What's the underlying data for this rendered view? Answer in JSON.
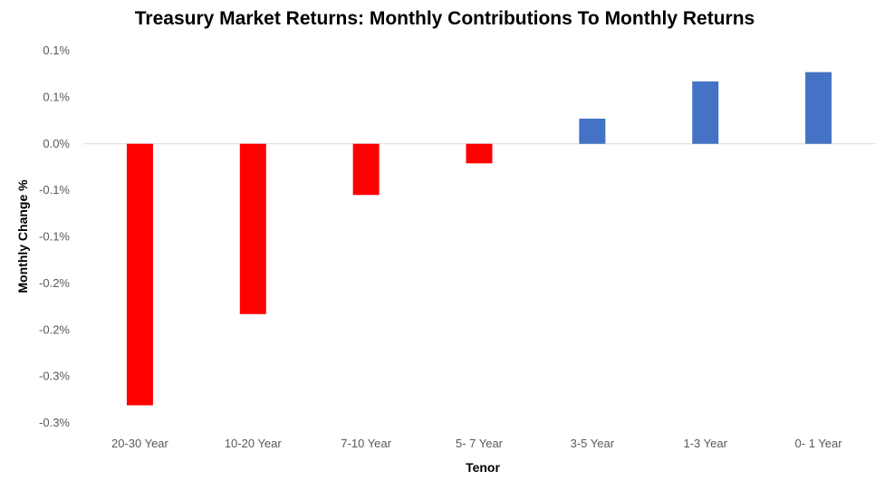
{
  "chart_data": {
    "type": "bar",
    "title": "Treasury Market Returns: Monthly Contributions To Monthly Returns",
    "xlabel": "Tenor",
    "ylabel": "Monthly Change %",
    "categories": [
      "20-30 Year",
      "10-20 Year",
      "7-10 Year",
      "5- 7 Year",
      "3-5 Year",
      "1-3 Year",
      "0- 1 Year"
    ],
    "values": [
      -0.281,
      -0.183,
      -0.055,
      -0.021,
      0.027,
      0.067,
      0.077
    ],
    "ylim": [
      -0.3,
      0.1
    ],
    "y_ticks": [
      0.1,
      0.05,
      0.0,
      -0.05,
      -0.1,
      -0.15,
      -0.2,
      -0.25,
      -0.3
    ],
    "y_tick_labels": [
      "0.1%",
      "0.1%",
      "0.0%",
      "-0.1%",
      "-0.1%",
      "-0.2%",
      "-0.2%",
      "-0.3%",
      "-0.3%"
    ],
    "colors": {
      "negative": "#ff0000",
      "positive": "#4472c4",
      "zero_line": "#d9d9d9"
    },
    "grid": false,
    "legend": "none"
  }
}
